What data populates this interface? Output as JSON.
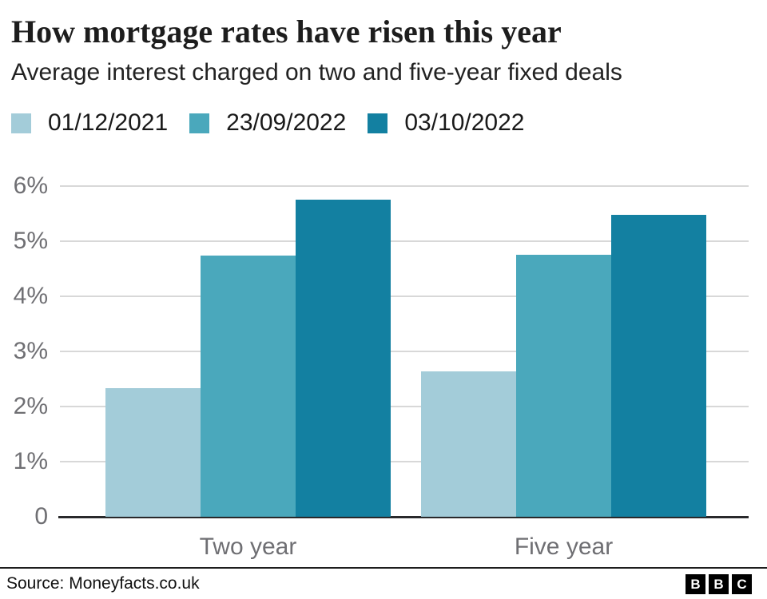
{
  "header": {
    "title": "How mortgage rates have risen this year",
    "subtitle": "Average interest charged on two and five-year fixed deals"
  },
  "chart_data": {
    "type": "bar",
    "categories": [
      "Two year",
      "Five year"
    ],
    "series": [
      {
        "name": "01/12/2021",
        "color": "#a3ccd9",
        "values": [
          2.34,
          2.64
        ]
      },
      {
        "name": "23/09/2022",
        "color": "#4aa8bc",
        "values": [
          4.74,
          4.75
        ]
      },
      {
        "name": "03/10/2022",
        "color": "#1380a1",
        "values": [
          5.75,
          5.48
        ]
      }
    ],
    "xlabel": "",
    "ylabel": "",
    "ylim": [
      0,
      6
    ],
    "yticks": [
      {
        "value": 0,
        "label": "0"
      },
      {
        "value": 1,
        "label": "1%"
      },
      {
        "value": 2,
        "label": "2%"
      },
      {
        "value": 3,
        "label": "3%"
      },
      {
        "value": 4,
        "label": "4%"
      },
      {
        "value": 5,
        "label": "5%"
      },
      {
        "value": 6,
        "label": "6%"
      }
    ],
    "grid": "horizontal",
    "legend_position": "top"
  },
  "footer": {
    "source": "Source: Moneyfacts.co.uk",
    "logo_letters": [
      "B",
      "B",
      "C"
    ]
  }
}
